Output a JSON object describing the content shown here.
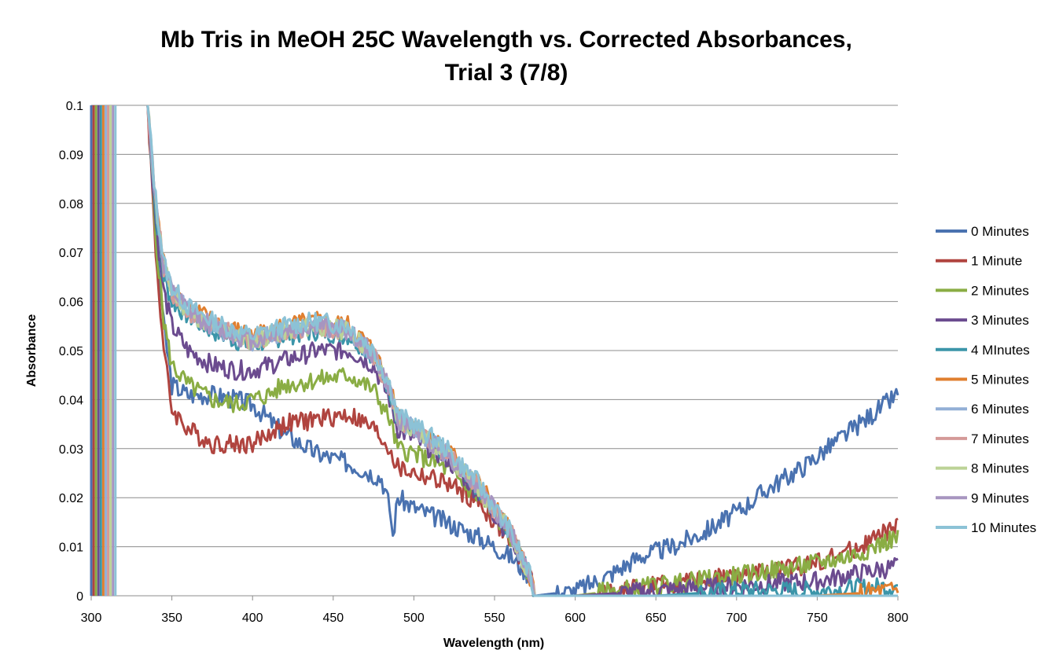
{
  "chart_data": {
    "type": "line",
    "title_line1": "Mb Tris in MeOH 25C Wavelength vs. Corrected Absorbances,",
    "title_line2": "Trial 3 (7/8)",
    "xlabel": "Wavelength (nm)",
    "ylabel": "Absorbance",
    "xlim": [
      300,
      800
    ],
    "ylim": [
      0,
      0.1
    ],
    "x_ticks": [
      "300",
      "350",
      "400",
      "450",
      "500",
      "550",
      "600",
      "650",
      "700",
      "750",
      "800"
    ],
    "y_ticks": [
      "0",
      "0.01",
      "0.02",
      "0.03",
      "0.04",
      "0.05",
      "0.06",
      "0.07",
      "0.08",
      "0.09",
      "0.1"
    ],
    "grid": "horizontal",
    "legend_position": "right",
    "series": [
      {
        "name": "0 Minutes",
        "color": "#4a72b0",
        "points": [
          [
            300,
            0.1
          ],
          [
            335,
            0.1
          ],
          [
            340,
            0.075
          ],
          [
            345,
            0.055
          ],
          [
            350,
            0.043
          ],
          [
            360,
            0.041
          ],
          [
            375,
            0.041
          ],
          [
            390,
            0.04
          ],
          [
            400,
            0.039
          ],
          [
            410,
            0.036
          ],
          [
            420,
            0.033
          ],
          [
            440,
            0.029
          ],
          [
            460,
            0.027
          ],
          [
            480,
            0.024
          ],
          [
            485,
            0.018
          ],
          [
            487,
            0.012
          ],
          [
            490,
            0.02
          ],
          [
            500,
            0.018
          ],
          [
            520,
            0.015
          ],
          [
            540,
            0.012
          ],
          [
            560,
            0.008
          ],
          [
            572,
            0.004
          ],
          [
            575,
            0.0
          ],
          [
            600,
            0.001
          ],
          [
            620,
            0.004
          ],
          [
            640,
            0.008
          ],
          [
            660,
            0.01
          ],
          [
            680,
            0.013
          ],
          [
            700,
            0.017
          ],
          [
            720,
            0.022
          ],
          [
            740,
            0.026
          ],
          [
            760,
            0.031
          ],
          [
            780,
            0.036
          ],
          [
            800,
            0.041
          ]
        ]
      },
      {
        "name": "1 Minute",
        "color": "#b0443f",
        "points": [
          [
            300,
            0.1
          ],
          [
            335,
            0.1
          ],
          [
            340,
            0.07
          ],
          [
            345,
            0.05
          ],
          [
            350,
            0.038
          ],
          [
            360,
            0.034
          ],
          [
            375,
            0.031
          ],
          [
            390,
            0.031
          ],
          [
            400,
            0.031
          ],
          [
            410,
            0.033
          ],
          [
            420,
            0.035
          ],
          [
            440,
            0.036
          ],
          [
            460,
            0.037
          ],
          [
            475,
            0.034
          ],
          [
            485,
            0.03
          ],
          [
            490,
            0.026
          ],
          [
            500,
            0.025
          ],
          [
            520,
            0.023
          ],
          [
            540,
            0.019
          ],
          [
            560,
            0.011
          ],
          [
            572,
            0.004
          ],
          [
            575,
            0.0
          ],
          [
            600,
            0.0
          ],
          [
            650,
            0.002
          ],
          [
            700,
            0.004
          ],
          [
            740,
            0.006
          ],
          [
            770,
            0.009
          ],
          [
            800,
            0.014
          ]
        ]
      },
      {
        "name": "2 Minutes",
        "color": "#8aad44",
        "points": [
          [
            300,
            0.1
          ],
          [
            335,
            0.1
          ],
          [
            340,
            0.073
          ],
          [
            345,
            0.056
          ],
          [
            350,
            0.047
          ],
          [
            360,
            0.043
          ],
          [
            375,
            0.04
          ],
          [
            390,
            0.039
          ],
          [
            400,
            0.04
          ],
          [
            410,
            0.041
          ],
          [
            420,
            0.043
          ],
          [
            440,
            0.044
          ],
          [
            460,
            0.045
          ],
          [
            475,
            0.042
          ],
          [
            485,
            0.036
          ],
          [
            490,
            0.03
          ],
          [
            500,
            0.029
          ],
          [
            520,
            0.026
          ],
          [
            540,
            0.02
          ],
          [
            560,
            0.012
          ],
          [
            572,
            0.004
          ],
          [
            575,
            0.0
          ],
          [
            600,
            0.0
          ],
          [
            650,
            0.002
          ],
          [
            700,
            0.004
          ],
          [
            740,
            0.006
          ],
          [
            770,
            0.008
          ],
          [
            800,
            0.012
          ]
        ]
      },
      {
        "name": "3 Minutes",
        "color": "#6b4b8f",
        "points": [
          [
            300,
            0.1
          ],
          [
            335,
            0.1
          ],
          [
            340,
            0.076
          ],
          [
            345,
            0.062
          ],
          [
            350,
            0.055
          ],
          [
            360,
            0.05
          ],
          [
            375,
            0.047
          ],
          [
            390,
            0.046
          ],
          [
            400,
            0.046
          ],
          [
            410,
            0.047
          ],
          [
            420,
            0.048
          ],
          [
            440,
            0.05
          ],
          [
            460,
            0.05
          ],
          [
            475,
            0.047
          ],
          [
            485,
            0.04
          ],
          [
            490,
            0.034
          ],
          [
            500,
            0.032
          ],
          [
            520,
            0.028
          ],
          [
            540,
            0.021
          ],
          [
            560,
            0.012
          ],
          [
            572,
            0.004
          ],
          [
            575,
            0.0
          ],
          [
            600,
            0.0
          ],
          [
            650,
            0.001
          ],
          [
            700,
            0.002
          ],
          [
            750,
            0.003
          ],
          [
            800,
            0.006
          ]
        ]
      },
      {
        "name": "4 MInutes",
        "color": "#3b95a9",
        "points": [
          [
            300,
            0.1
          ],
          [
            335,
            0.1
          ],
          [
            340,
            0.078
          ],
          [
            345,
            0.065
          ],
          [
            350,
            0.06
          ],
          [
            360,
            0.057
          ],
          [
            375,
            0.054
          ],
          [
            390,
            0.052
          ],
          [
            400,
            0.051
          ],
          [
            410,
            0.052
          ],
          [
            420,
            0.053
          ],
          [
            440,
            0.054
          ],
          [
            460,
            0.053
          ],
          [
            475,
            0.049
          ],
          [
            485,
            0.042
          ],
          [
            490,
            0.036
          ],
          [
            500,
            0.034
          ],
          [
            520,
            0.029
          ],
          [
            540,
            0.022
          ],
          [
            560,
            0.013
          ],
          [
            572,
            0.004
          ],
          [
            575,
            0.0
          ],
          [
            600,
            0.0
          ],
          [
            650,
            0.0
          ],
          [
            700,
            0.001
          ],
          [
            750,
            0.001
          ],
          [
            800,
            0.002
          ]
        ]
      },
      {
        "name": "5 Minutes",
        "color": "#e07f2f",
        "points": [
          [
            300,
            0.1
          ],
          [
            335,
            0.1
          ],
          [
            340,
            0.08
          ],
          [
            345,
            0.068
          ],
          [
            350,
            0.063
          ],
          [
            360,
            0.059
          ],
          [
            375,
            0.056
          ],
          [
            390,
            0.054
          ],
          [
            400,
            0.053
          ],
          [
            410,
            0.054
          ],
          [
            420,
            0.055
          ],
          [
            440,
            0.056
          ],
          [
            460,
            0.055
          ],
          [
            475,
            0.05
          ],
          [
            485,
            0.043
          ],
          [
            490,
            0.037
          ],
          [
            500,
            0.035
          ],
          [
            520,
            0.03
          ],
          [
            540,
            0.023
          ],
          [
            560,
            0.013
          ],
          [
            572,
            0.004
          ],
          [
            575,
            0.0
          ],
          [
            600,
            0.0
          ],
          [
            650,
            0.0
          ],
          [
            700,
            0.0
          ],
          [
            750,
            0.0
          ],
          [
            800,
            0.001
          ]
        ]
      },
      {
        "name": "6 Minutes",
        "color": "#93afd6",
        "points": [
          [
            300,
            0.1
          ],
          [
            335,
            0.1
          ],
          [
            340,
            0.08
          ],
          [
            345,
            0.067
          ],
          [
            350,
            0.062
          ],
          [
            360,
            0.058
          ],
          [
            375,
            0.055
          ],
          [
            390,
            0.053
          ],
          [
            400,
            0.052
          ],
          [
            410,
            0.053
          ],
          [
            420,
            0.054
          ],
          [
            440,
            0.055
          ],
          [
            460,
            0.054
          ],
          [
            475,
            0.049
          ],
          [
            485,
            0.042
          ],
          [
            490,
            0.036
          ],
          [
            500,
            0.034
          ],
          [
            520,
            0.029
          ],
          [
            540,
            0.022
          ],
          [
            560,
            0.013
          ],
          [
            572,
            0.004
          ],
          [
            575,
            0.0
          ],
          [
            800,
            0.0
          ]
        ]
      },
      {
        "name": "7 Minutes",
        "color": "#d49a98",
        "points": [
          [
            300,
            0.1
          ],
          [
            335,
            0.1
          ],
          [
            340,
            0.08
          ],
          [
            345,
            0.067
          ],
          [
            350,
            0.062
          ],
          [
            360,
            0.058
          ],
          [
            375,
            0.055
          ],
          [
            390,
            0.053
          ],
          [
            400,
            0.052
          ],
          [
            410,
            0.053
          ],
          [
            420,
            0.054
          ],
          [
            440,
            0.055
          ],
          [
            460,
            0.054
          ],
          [
            475,
            0.049
          ],
          [
            485,
            0.042
          ],
          [
            490,
            0.036
          ],
          [
            500,
            0.034
          ],
          [
            520,
            0.029
          ],
          [
            540,
            0.022
          ],
          [
            560,
            0.013
          ],
          [
            572,
            0.004
          ],
          [
            575,
            0.0
          ],
          [
            800,
            0.0
          ]
        ]
      },
      {
        "name": "8 Minutes",
        "color": "#bcd397",
        "points": [
          [
            300,
            0.1
          ],
          [
            335,
            0.1
          ],
          [
            340,
            0.08
          ],
          [
            345,
            0.067
          ],
          [
            350,
            0.062
          ],
          [
            360,
            0.058
          ],
          [
            375,
            0.055
          ],
          [
            390,
            0.053
          ],
          [
            400,
            0.052
          ],
          [
            410,
            0.053
          ],
          [
            420,
            0.054
          ],
          [
            440,
            0.055
          ],
          [
            460,
            0.054
          ],
          [
            475,
            0.049
          ],
          [
            485,
            0.042
          ],
          [
            490,
            0.036
          ],
          [
            500,
            0.034
          ],
          [
            520,
            0.029
          ],
          [
            540,
            0.022
          ],
          [
            560,
            0.013
          ],
          [
            572,
            0.004
          ],
          [
            575,
            0.0
          ],
          [
            800,
            0.0
          ]
        ]
      },
      {
        "name": "9 Minutes",
        "color": "#a795c0",
        "points": [
          [
            300,
            0.1
          ],
          [
            335,
            0.1
          ],
          [
            340,
            0.08
          ],
          [
            345,
            0.067
          ],
          [
            350,
            0.062
          ],
          [
            360,
            0.058
          ],
          [
            375,
            0.055
          ],
          [
            390,
            0.053
          ],
          [
            400,
            0.052
          ],
          [
            410,
            0.053
          ],
          [
            420,
            0.054
          ],
          [
            440,
            0.055
          ],
          [
            460,
            0.054
          ],
          [
            475,
            0.049
          ],
          [
            485,
            0.042
          ],
          [
            490,
            0.036
          ],
          [
            500,
            0.034
          ],
          [
            520,
            0.029
          ],
          [
            540,
            0.022
          ],
          [
            560,
            0.013
          ],
          [
            572,
            0.004
          ],
          [
            575,
            0.0
          ],
          [
            800,
            0.0
          ]
        ]
      },
      {
        "name": "10 Minutes",
        "color": "#8cc2d6",
        "points": [
          [
            300,
            0.1
          ],
          [
            335,
            0.1
          ],
          [
            340,
            0.081
          ],
          [
            345,
            0.068
          ],
          [
            350,
            0.063
          ],
          [
            360,
            0.059
          ],
          [
            375,
            0.056
          ],
          [
            390,
            0.054
          ],
          [
            400,
            0.053
          ],
          [
            410,
            0.054
          ],
          [
            420,
            0.055
          ],
          [
            440,
            0.056
          ],
          [
            460,
            0.055
          ],
          [
            475,
            0.05
          ],
          [
            485,
            0.043
          ],
          [
            490,
            0.037
          ],
          [
            500,
            0.035
          ],
          [
            520,
            0.03
          ],
          [
            540,
            0.023
          ],
          [
            560,
            0.013
          ],
          [
            572,
            0.004
          ],
          [
            575,
            0.0
          ],
          [
            800,
            0.0
          ]
        ]
      }
    ]
  }
}
